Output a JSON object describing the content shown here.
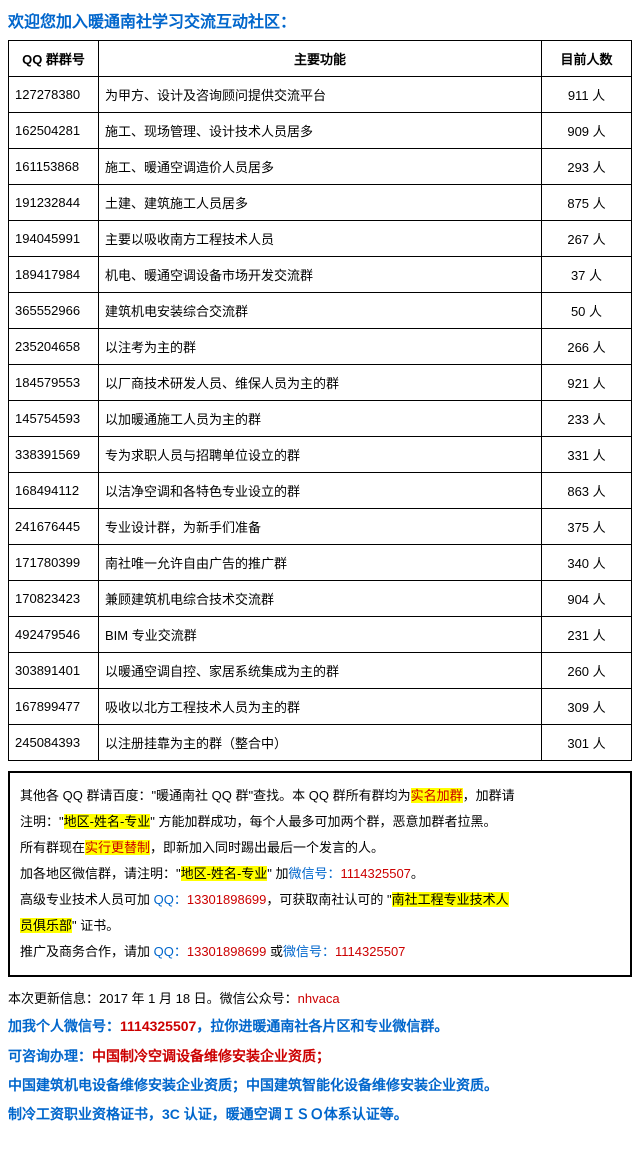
{
  "title": "欢迎您加入暖通南社学习交流互动社区：",
  "table": {
    "headers": {
      "id": "QQ 群群号",
      "func": "主要功能",
      "count": "目前人数"
    },
    "rows": [
      {
        "id": "127278380",
        "func": "为甲方、设计及咨询顾问提供交流平台",
        "count": "911 人"
      },
      {
        "id": "162504281",
        "func": "施工、现场管理、设计技术人员居多",
        "count": "909 人"
      },
      {
        "id": "161153868",
        "func": "施工、暖通空调造价人员居多",
        "count": "293 人"
      },
      {
        "id": "191232844",
        "func": "土建、建筑施工人员居多",
        "count": "875 人"
      },
      {
        "id": "194045991",
        "func": "主要以吸收南方工程技术人员",
        "count": "267 人"
      },
      {
        "id": "189417984",
        "func": "机电、暖通空调设备市场开发交流群",
        "count": "37 人"
      },
      {
        "id": "365552966",
        "func": "建筑机电安装综合交流群",
        "count": "50 人"
      },
      {
        "id": "235204658",
        "func": "以注考为主的群",
        "count": "266 人"
      },
      {
        "id": "184579553",
        "func": "以厂商技术研发人员、维保人员为主的群",
        "count": "921 人"
      },
      {
        "id": "145754593",
        "func": "以加暖通施工人员为主的群",
        "count": "233 人"
      },
      {
        "id": "338391569",
        "func": "专为求职人员与招聘单位设立的群",
        "count": "331 人"
      },
      {
        "id": "168494112",
        "func": "以洁净空调和各特色专业设立的群",
        "count": "863 人"
      },
      {
        "id": "241676445",
        "func": "专业设计群，为新手们准备",
        "count": "375 人"
      },
      {
        "id": "171780399",
        "func": "南社唯一允许自由广告的推广群",
        "count": "340 人"
      },
      {
        "id": "170823423",
        "func": "兼顾建筑机电综合技术交流群",
        "count": "904 人"
      },
      {
        "id": "492479546",
        "func": "BIM 专业交流群",
        "count": "231 人"
      },
      {
        "id": "303891401",
        "func": "以暖通空调自控、家居系统集成为主的群",
        "count": "260 人"
      },
      {
        "id": "167899477",
        "func": "吸收以北方工程技术人员为主的群",
        "count": "309 人"
      },
      {
        "id": "245084393",
        "func": "以注册挂靠为主的群（整合中）",
        "count": "301 人"
      }
    ]
  },
  "notice": {
    "l1a": "其他各 QQ 群请百度：\"暖通南社 QQ 群\"查找。本 QQ 群所有群均为",
    "l1b": "实名加群",
    "l1c": "，加群请",
    "l2a": "注明：\"",
    "l2b": "地区-姓名-专业",
    "l2c": "\" 方能加群成功，每个人最多可加两个群，恶意加群者拉黑。",
    "l3a": "所有群现在",
    "l3b": "实行更替制",
    "l3c": "，即新加入同时踢出最后一个发言的人。",
    "l4a": "加各地区微信群，请注明：\"",
    "l4b": "地区-姓名-专业",
    "l4c": "\" 加",
    "l4d": "微信号：",
    "l4e": "1114325507",
    "l4f": "。",
    "l5a": "高级专业技术人员可加 ",
    "l5b": "QQ：",
    "l5c": "13301898699",
    "l5d": "，可获取南社认可的 \"",
    "l5e": "南社工程专业技术人",
    "l6a": "员俱乐部",
    "l6b": "\" 证书。",
    "l7a": "推广及商务合作，请加 ",
    "l7b": "QQ：",
    "l7c": "13301898699",
    "l7d": " 或",
    "l7e": "微信号：",
    "l7f": "1114325507"
  },
  "footer": {
    "f1a": "本次更新信息：2017 年 1 月 18 日。微信公众号：",
    "f1b": "nhvaca",
    "f2a": "加我个人微信号：",
    "f2b": "1114325507",
    "f2c": "，拉你进暖通南社各片区和专业微信群。",
    "f3a": "可咨询办理：",
    "f3b": "中国制冷空调设备维修安装企业资质；",
    "f4": "中国建筑机电设备维修安装企业资质；中国建筑智能化设备维修安装企业资质。",
    "f5": "制冷工资职业资格证书，3C 认证，暖通空调ＩＳＯ体系认证等。"
  }
}
